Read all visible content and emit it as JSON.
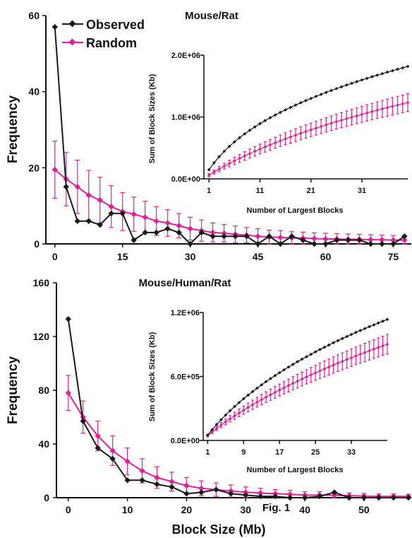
{
  "caption": "Fig. 1",
  "colors": {
    "observed": "#1a1a1a",
    "random": "#e0209a"
  },
  "chart_data": [
    {
      "type": "line",
      "title": "Mouse/Rat",
      "ylabel": "Frequency",
      "xlabel": "",
      "xlim": [
        -2,
        79
      ],
      "ylim": [
        0,
        60
      ],
      "xticks": [
        "0",
        "15",
        "30",
        "45",
        "60",
        "75"
      ],
      "yticks": [
        "0",
        "20",
        "40",
        "60"
      ],
      "legend": "top-left",
      "series": [
        {
          "name": "Observed",
          "x": [
            0,
            2.5,
            5,
            7.5,
            10,
            12.5,
            15,
            17.5,
            20,
            22.5,
            25,
            27.5,
            30,
            32.5,
            35,
            37.5,
            40,
            42.5,
            45,
            47.5,
            50,
            52.5,
            55,
            57.5,
            60,
            62.5,
            65,
            67.5,
            70,
            72.5,
            75,
            77.5
          ],
          "values": [
            57,
            15,
            6,
            6,
            5,
            8,
            8,
            1,
            3,
            3,
            4,
            3,
            0,
            3,
            2,
            2,
            2,
            2,
            0,
            2,
            0,
            2,
            1,
            0,
            0,
            1,
            1,
            1,
            0,
            0,
            0,
            2
          ]
        },
        {
          "name": "Random",
          "x": [
            0,
            2.5,
            5,
            7.5,
            10,
            12.5,
            15,
            17.5,
            20,
            22.5,
            25,
            27.5,
            30,
            32.5,
            35,
            37.5,
            40,
            42.5,
            45,
            47.5,
            50,
            52.5,
            55,
            57.5,
            60,
            62.5,
            65,
            67.5,
            70,
            72.5,
            75,
            77.5
          ],
          "values": [
            19.5,
            17,
            15,
            12.8,
            11.5,
            9.8,
            8.5,
            7.8,
            7,
            6,
            5.5,
            4.8,
            4,
            3.5,
            3,
            2.8,
            2.5,
            2.3,
            2,
            1.8,
            1.7,
            1.6,
            1.5,
            1.4,
            1.3,
            1.3,
            1.2,
            1.2,
            1.1,
            1.1,
            1,
            1
          ],
          "error": [
            7.5,
            7,
            7,
            6.5,
            6,
            5.5,
            5,
            4.5,
            4.2,
            3.8,
            3.5,
            3.2,
            3,
            2.8,
            2.5,
            2.3,
            2.2,
            2,
            2,
            1.8,
            1.8,
            1.6,
            1.6,
            1.5,
            1.5,
            1.4,
            1.4,
            1.3,
            1.3,
            1.2,
            1.2,
            1.2
          ]
        }
      ]
    },
    {
      "type": "line",
      "title": "",
      "xlabel": "Number of Largest Blocks",
      "ylabel": "Sum of Block Sizes (Kb)",
      "xlim": [
        0,
        40
      ],
      "ylim": [
        0,
        2000000
      ],
      "xticks": [
        "1",
        "11",
        "21",
        "31"
      ],
      "yticks": [
        "0.0E+00",
        "1.0E+06",
        "2.0E+06"
      ],
      "series": [
        {
          "name": "",
          "x": [
            1,
            2,
            3,
            4,
            5,
            6,
            7,
            8,
            9,
            10,
            11,
            12,
            13,
            14,
            15,
            16,
            17,
            18,
            19,
            20,
            21,
            22,
            23,
            24,
            25,
            26,
            27,
            28,
            29,
            30,
            31,
            32,
            33,
            34,
            35,
            36,
            37,
            38,
            39,
            40
          ],
          "values": [
            148000,
            260000,
            358000,
            446000,
            525000,
            598000,
            665000,
            727000,
            785000,
            840000,
            892000,
            941000,
            988000,
            1032000,
            1075000,
            1116000,
            1155000,
            1193000,
            1230000,
            1266000,
            1300000,
            1334000,
            1366000,
            1398000,
            1429000,
            1459000,
            1488000,
            1517000,
            1545000,
            1572000,
            1599000,
            1625000,
            1651000,
            1676000,
            1700000,
            1725000,
            1748000,
            1772000,
            1794000,
            1817000
          ]
        },
        {
          "name": "",
          "x": [
            1,
            2,
            3,
            4,
            5,
            6,
            7,
            8,
            9,
            10,
            11,
            12,
            13,
            14,
            15,
            16,
            17,
            18,
            19,
            20,
            21,
            22,
            23,
            24,
            25,
            26,
            27,
            28,
            29,
            30,
            31,
            32,
            33,
            34,
            35,
            36,
            37,
            38,
            39,
            40
          ],
          "values": [
            60000,
            111000,
            159000,
            205000,
            249000,
            291000,
            332000,
            371000,
            409000,
            446000,
            482000,
            516000,
            550000,
            583000,
            615000,
            647000,
            677000,
            707000,
            736000,
            765000,
            793000,
            820000,
            847000,
            873000,
            899000,
            924000,
            949000,
            973000,
            997000,
            1020000,
            1043000,
            1066000,
            1088000,
            1110000,
            1131000,
            1152000,
            1173000,
            1193000,
            1213000,
            1233000
          ],
          "error": [
            25000,
            33000,
            40000,
            47000,
            53000,
            58000,
            63000,
            68000,
            72000,
            76000,
            80000,
            84000,
            87000,
            90000,
            93000,
            96000,
            99000,
            102000,
            104000,
            107000,
            109000,
            112000,
            114000,
            116000,
            118000,
            120000,
            122000,
            124000,
            126000,
            128000,
            130000,
            132000,
            133000,
            135000,
            137000,
            138000,
            140000,
            141000,
            143000,
            144000
          ]
        }
      ]
    },
    {
      "type": "line",
      "title": "Mouse/Human/Rat",
      "ylabel": "Frequency",
      "xlabel": "Block Size (Mb)",
      "xlim": [
        -2,
        58
      ],
      "ylim": [
        0,
        160
      ],
      "xticks": [
        "0",
        "10",
        "20",
        "30",
        "40",
        "50"
      ],
      "yticks": [
        "0",
        "40",
        "80",
        "120",
        "160"
      ],
      "series": [
        {
          "name": "Observed",
          "x": [
            0,
            2.5,
            5,
            7.5,
            10,
            12.5,
            15,
            17.5,
            20,
            22.5,
            25,
            27.5,
            30,
            32.5,
            35,
            37.5,
            40,
            42.5,
            45,
            47.5,
            50,
            52.5,
            55,
            57.5
          ],
          "values": [
            133,
            57,
            37,
            29,
            13,
            13,
            10,
            8,
            3,
            4,
            6,
            3,
            2,
            1,
            1,
            0,
            0,
            1,
            4,
            0,
            0,
            0,
            0,
            0
          ]
        },
        {
          "name": "Random",
          "x": [
            0,
            2.5,
            5,
            7.5,
            10,
            12.5,
            15,
            17.5,
            20,
            22.5,
            25,
            27.5,
            30,
            32.5,
            35,
            37.5,
            40,
            42.5,
            45,
            47.5,
            50,
            52.5,
            55,
            57.5
          ],
          "values": [
            78,
            60,
            46,
            35,
            27,
            20,
            15,
            12,
            9,
            7,
            6,
            5,
            4,
            3.5,
            3,
            2.5,
            2,
            2,
            1.8,
            1.5,
            1.2,
            1,
            1,
            1
          ],
          "error": [
            13,
            12,
            11,
            11,
            10,
            9,
            8,
            7,
            6,
            5.5,
            5,
            4.5,
            4,
            3.5,
            3,
            3,
            2.5,
            2.5,
            2.2,
            2,
            2,
            1.8,
            1.8,
            1.5
          ]
        }
      ]
    },
    {
      "type": "line",
      "title": "",
      "xlabel": "Number of Largest Blocks",
      "ylabel": "Sum of Block Sizes (Kb)",
      "xlim": [
        0,
        41
      ],
      "ylim": [
        0,
        1200000
      ],
      "xticks": [
        "1",
        "9",
        "17",
        "25",
        "33"
      ],
      "yticks": [
        "0.0E+00",
        "6.0E+05",
        "1.2E+06"
      ],
      "series": [
        {
          "name": "",
          "x": [
            1,
            2,
            3,
            4,
            5,
            6,
            7,
            8,
            9,
            10,
            11,
            12,
            13,
            14,
            15,
            16,
            17,
            18,
            19,
            20,
            21,
            22,
            23,
            24,
            25,
            26,
            27,
            28,
            29,
            30,
            31,
            32,
            33,
            34,
            35,
            36,
            37,
            38,
            39,
            40,
            41
          ],
          "values": [
            50000,
            102000,
            150000,
            195000,
            238000,
            279000,
            318000,
            355000,
            391000,
            425000,
            458000,
            490000,
            521000,
            551000,
            580000,
            608000,
            635000,
            662000,
            688000,
            713000,
            738000,
            762000,
            785000,
            808000,
            831000,
            853000,
            874000,
            895000,
            916000,
            936000,
            956000,
            975000,
            994000,
            1013000,
            1031000,
            1049000,
            1067000,
            1084000,
            1101000,
            1118000,
            1135000
          ]
        },
        {
          "name": "",
          "x": [
            1,
            2,
            3,
            4,
            5,
            6,
            7,
            8,
            9,
            10,
            11,
            12,
            13,
            14,
            15,
            16,
            17,
            18,
            19,
            20,
            21,
            22,
            23,
            24,
            25,
            26,
            27,
            28,
            29,
            30,
            31,
            32,
            33,
            34,
            35,
            36,
            37,
            38,
            39,
            40,
            41
          ],
          "values": [
            45000,
            80000,
            113000,
            144000,
            174000,
            203000,
            231000,
            258000,
            284000,
            310000,
            335000,
            359000,
            383000,
            406000,
            429000,
            451000,
            473000,
            494000,
            515000,
            536000,
            556000,
            576000,
            596000,
            615000,
            634000,
            653000,
            671000,
            689000,
            707000,
            725000,
            742000,
            759000,
            776000,
            793000,
            809000,
            825000,
            841000,
            857000,
            872000,
            887000,
            902000
          ],
          "error": [
            12000,
            16000,
            20000,
            24000,
            27000,
            30000,
            33000,
            36000,
            38000,
            41000,
            43000,
            46000,
            48000,
            50000,
            52000,
            54000,
            56000,
            58000,
            60000,
            62000,
            64000,
            65000,
            67000,
            69000,
            70000,
            72000,
            73000,
            75000,
            76000,
            78000,
            79000,
            80000,
            82000,
            83000,
            84000,
            86000,
            87000,
            88000,
            89000,
            90000,
            92000
          ]
        }
      ]
    }
  ]
}
